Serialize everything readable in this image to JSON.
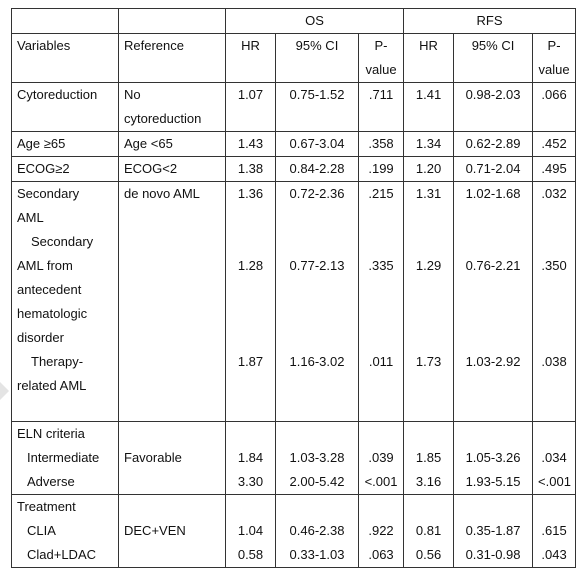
{
  "header": {
    "group_os": "OS",
    "group_rfs": "RFS",
    "variables": "Variables",
    "reference": "Reference",
    "hr": "HR",
    "ci": "95% CI",
    "p_line1": "P-",
    "p_line2": "value"
  },
  "rows": {
    "cyto": {
      "variable": "Cytoreduction",
      "ref_line1": "No",
      "ref_line2": "cytoreduction",
      "os_hr": "1.07",
      "os_ci": "0.75-1.52",
      "os_p": ".711",
      "rfs_hr": "1.41",
      "rfs_ci": "0.98-2.03",
      "rfs_p": ".066"
    },
    "age": {
      "variable": "Age ≥65",
      "reference": "Age <65",
      "os_hr": "1.43",
      "os_ci": "0.67-3.04",
      "os_p": ".358",
      "rfs_hr": "1.34",
      "rfs_ci": "0.62-2.89",
      "rfs_p": ".452"
    },
    "ecog": {
      "variable": "ECOG≥2",
      "reference": "ECOG<2",
      "os_hr": "1.38",
      "os_ci": "0.84-2.28",
      "os_p": ".199",
      "rfs_hr": "1.20",
      "rfs_ci": "0.71-2.04",
      "rfs_p": ".495"
    },
    "secondary": {
      "var_line1": "Secondary",
      "var_line2": "AML",
      "reference": "de novo AML",
      "os_hr": "1.36",
      "os_ci": "0.72-2.36",
      "os_p": ".215",
      "rfs_hr": "1.31",
      "rfs_ci": "1.02-1.68",
      "rfs_p": ".032"
    },
    "antecedent": {
      "var_line1": "Secondary",
      "var_line2": "AML from",
      "var_line3": "antecedent",
      "var_line4": "hematologic",
      "var_line5": "disorder",
      "os_hr": "1.28",
      "os_ci": "0.77-2.13",
      "os_p": ".335",
      "rfs_hr": "1.29",
      "rfs_ci": "0.76-2.21",
      "rfs_p": ".350"
    },
    "therapy": {
      "var_line1": "Therapy-",
      "var_line2": "related AML",
      "os_hr": "1.87",
      "os_ci": "1.16-3.02",
      "os_p": ".011",
      "rfs_hr": "1.73",
      "rfs_ci": "1.03-2.92",
      "rfs_p": ".038"
    },
    "eln": {
      "variable": "ELN criteria",
      "reference": "Favorable",
      "intermediate": {
        "label": "Intermediate",
        "os_hr": "1.84",
        "os_ci": "1.03-3.28",
        "os_p": ".039",
        "rfs_hr": "1.85",
        "rfs_ci": "1.05-3.26",
        "rfs_p": ".034"
      },
      "adverse": {
        "label": "Adverse",
        "os_hr": "3.30",
        "os_ci": "2.00-5.42",
        "os_p": "<.001",
        "rfs_hr": "3.16",
        "rfs_ci": "1.93-5.15",
        "rfs_p": "<.001"
      }
    },
    "treatment": {
      "variable": "Treatment",
      "reference": "DEC+VEN",
      "clia": {
        "label": "CLIA",
        "os_hr": "1.04",
        "os_ci": "0.46-2.38",
        "os_p": ".922",
        "rfs_hr": "0.81",
        "rfs_ci": "0.35-1.87",
        "rfs_p": ".615"
      },
      "clad": {
        "label": "Clad+LDAC",
        "os_hr": "0.58",
        "os_ci": "0.33-1.03",
        "os_p": ".063",
        "rfs_hr": "0.56",
        "rfs_ci": "0.31-0.98",
        "rfs_p": ".043"
      }
    }
  }
}
